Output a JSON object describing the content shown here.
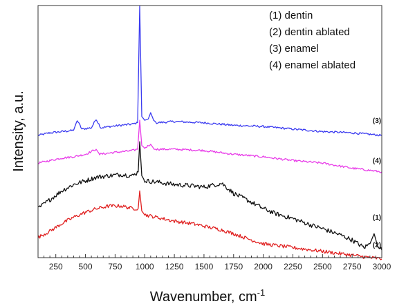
{
  "chart_data": {
    "type": "line",
    "title": "",
    "xlabel": "Wavenumber, cm",
    "xlabel_sup": "-1",
    "ylabel": "Intensity, a.u.",
    "xlim": [
      100,
      3000
    ],
    "ylim": [
      0,
      10
    ],
    "y_ticks_labeled": false,
    "grid": false,
    "legend_position": "top-right",
    "x_ticks": [
      "250",
      "500",
      "750",
      "1000",
      "1250",
      "1500",
      "1750",
      "2000",
      "2250",
      "2500",
      "2750",
      "3000"
    ],
    "legend": [
      "(1) dentin",
      "(2) dentin ablated",
      "(3) enamel",
      "(4) enamel ablated"
    ],
    "series": [
      {
        "label": "(3)",
        "color": "#3a3af0",
        "points": [
          [
            100,
            4.85
          ],
          [
            200,
            4.95
          ],
          [
            300,
            5.0
          ],
          [
            400,
            5.05
          ],
          [
            430,
            5.45
          ],
          [
            470,
            5.1
          ],
          [
            550,
            5.15
          ],
          [
            590,
            5.5
          ],
          [
            630,
            5.15
          ],
          [
            700,
            5.2
          ],
          [
            800,
            5.25
          ],
          [
            900,
            5.3
          ],
          [
            940,
            5.35
          ],
          [
            958,
            10.0
          ],
          [
            975,
            5.6
          ],
          [
            1000,
            5.45
          ],
          [
            1030,
            5.5
          ],
          [
            1050,
            5.75
          ],
          [
            1075,
            5.45
          ],
          [
            1100,
            5.35
          ],
          [
            1250,
            5.4
          ],
          [
            1500,
            5.35
          ],
          [
            1750,
            5.25
          ],
          [
            2000,
            5.2
          ],
          [
            2250,
            5.1
          ],
          [
            2500,
            5.0
          ],
          [
            2750,
            4.95
          ],
          [
            3000,
            4.85
          ]
        ]
      },
      {
        "label": "(4)",
        "color": "#e83ce8",
        "points": [
          [
            100,
            3.75
          ],
          [
            200,
            3.85
          ],
          [
            300,
            3.95
          ],
          [
            400,
            4.0
          ],
          [
            500,
            4.1
          ],
          [
            590,
            4.3
          ],
          [
            620,
            4.1
          ],
          [
            700,
            4.15
          ],
          [
            800,
            4.2
          ],
          [
            900,
            4.25
          ],
          [
            940,
            4.3
          ],
          [
            958,
            5.45
          ],
          [
            975,
            4.45
          ],
          [
            1000,
            4.35
          ],
          [
            1050,
            4.5
          ],
          [
            1080,
            4.3
          ],
          [
            1100,
            4.3
          ],
          [
            1250,
            4.3
          ],
          [
            1500,
            4.25
          ],
          [
            1750,
            4.1
          ],
          [
            2000,
            4.0
          ],
          [
            2250,
            3.85
          ],
          [
            2500,
            3.75
          ],
          [
            2750,
            3.55
          ],
          [
            3000,
            3.4
          ]
        ]
      },
      {
        "label": "(1)",
        "color": "#111111",
        "points": [
          [
            100,
            1.95
          ],
          [
            200,
            2.3
          ],
          [
            300,
            2.65
          ],
          [
            400,
            2.9
          ],
          [
            500,
            3.05
          ],
          [
            600,
            3.2
          ],
          [
            700,
            3.25
          ],
          [
            800,
            3.3
          ],
          [
            900,
            3.25
          ],
          [
            945,
            3.4
          ],
          [
            958,
            4.6
          ],
          [
            975,
            3.25
          ],
          [
            1000,
            3.05
          ],
          [
            1100,
            3.0
          ],
          [
            1250,
            2.9
          ],
          [
            1400,
            2.85
          ],
          [
            1500,
            2.8
          ],
          [
            1650,
            2.95
          ],
          [
            1750,
            2.55
          ],
          [
            1900,
            2.2
          ],
          [
            2000,
            1.95
          ],
          [
            2100,
            1.75
          ],
          [
            2250,
            1.55
          ],
          [
            2400,
            1.3
          ],
          [
            2500,
            1.15
          ],
          [
            2650,
            0.9
          ],
          [
            2750,
            0.7
          ],
          [
            2850,
            0.4
          ],
          [
            2900,
            0.55
          ],
          [
            2935,
            0.95
          ],
          [
            2960,
            0.55
          ],
          [
            3000,
            0.3
          ]
        ]
      },
      {
        "label": "(2)",
        "color": "#e02020",
        "points": [
          [
            100,
            0.8
          ],
          [
            200,
            1.05
          ],
          [
            300,
            1.35
          ],
          [
            400,
            1.6
          ],
          [
            500,
            1.8
          ],
          [
            600,
            1.95
          ],
          [
            700,
            2.05
          ],
          [
            800,
            2.05
          ],
          [
            900,
            1.95
          ],
          [
            945,
            1.95
          ],
          [
            958,
            2.65
          ],
          [
            975,
            1.85
          ],
          [
            1000,
            1.7
          ],
          [
            1100,
            1.6
          ],
          [
            1250,
            1.45
          ],
          [
            1400,
            1.35
          ],
          [
            1500,
            1.25
          ],
          [
            1650,
            1.1
          ],
          [
            1750,
            0.95
          ],
          [
            1900,
            0.7
          ],
          [
            2000,
            0.55
          ],
          [
            2250,
            0.4
          ],
          [
            2500,
            0.25
          ],
          [
            2750,
            0.1
          ],
          [
            2900,
            0.0
          ],
          [
            3000,
            -0.05
          ]
        ]
      }
    ]
  }
}
